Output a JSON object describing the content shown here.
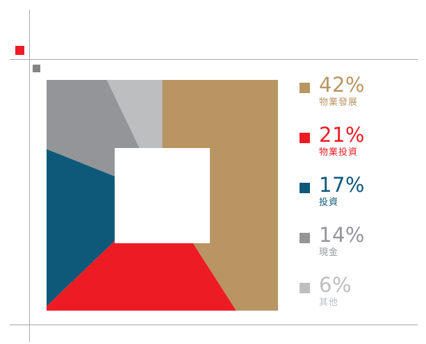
{
  "chart_data": {
    "type": "pie",
    "categories": [
      "物業發展",
      "物業投資",
      "投資",
      "現金",
      "其他"
    ],
    "values": [
      42,
      21,
      17,
      14,
      6
    ],
    "value_labels": [
      "42%",
      "21%",
      "17%",
      "14%",
      "6%"
    ],
    "colors": [
      "#b99563",
      "#ed1c24",
      "#0e587a",
      "#939598",
      "#bcbec0"
    ],
    "legend_text_colors": [
      "#b99563",
      "#ed1c24",
      "#0e587a",
      "#939598",
      "#bcbec0"
    ],
    "legend_position": "right"
  }
}
